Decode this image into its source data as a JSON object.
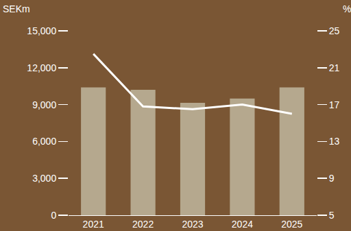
{
  "chart_data": {
    "type": "bar",
    "ylabel": "SEKm",
    "y2label": "%",
    "categories": [
      "2021",
      "2022",
      "2023",
      "2024",
      "2025"
    ],
    "series": [
      {
        "type": "bar",
        "color": "#b5a88e",
        "values": [
          10400,
          10200,
          9150,
          9500,
          10400
        ]
      },
      {
        "type": "line",
        "color": "#ffffff",
        "axis": "y2",
        "values": [
          22.5,
          16.8,
          16.5,
          17.0,
          16.0
        ]
      }
    ],
    "ylim": [
      0,
      15000
    ],
    "yticks": [
      0,
      {
        "value": 3000,
        "label": "3,000"
      },
      {
        "value": 6000,
        "label": "6,000"
      },
      {
        "value": 9000,
        "label": "9,000"
      },
      {
        "value": 12000,
        "label": "12,000"
      },
      {
        "value": 15000,
        "label": "15,000"
      }
    ],
    "y2lim": [
      5,
      25
    ],
    "y2ticks": [
      5,
      9,
      13,
      17,
      21,
      25
    ],
    "grid": false
  }
}
